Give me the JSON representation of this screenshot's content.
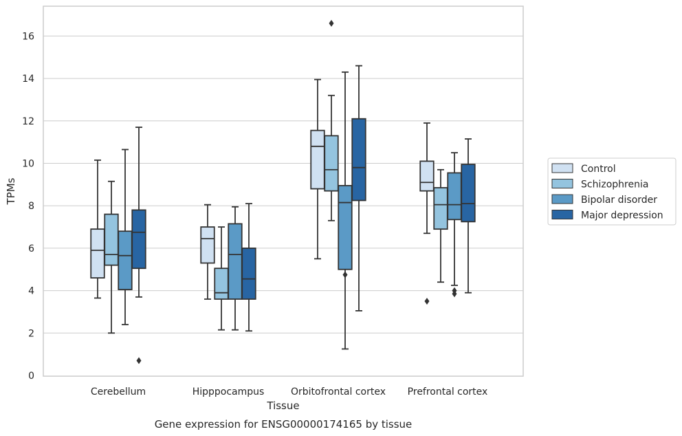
{
  "caption": "Gene expression for ENSG00000174165 by tissue",
  "chart_data": {
    "type": "box",
    "title": "",
    "xlabel": "Tissue",
    "ylabel": "TPMs",
    "ylim": [
      0,
      17.4
    ],
    "yticks": [
      0,
      2,
      4,
      6,
      8,
      10,
      12,
      14,
      16
    ],
    "grid": "horizontal",
    "legend_position": "right",
    "categories": [
      "Cerebellum",
      "Hipppocampus",
      "Orbitofrontal cortex",
      "Prefrontal cortex"
    ],
    "series": [
      {
        "name": "Control",
        "color": "#d0e1f2",
        "boxes": [
          {
            "whisker_low": 3.65,
            "q1": 4.6,
            "median": 5.9,
            "q3": 6.9,
            "whisker_high": 10.15,
            "outliers": []
          },
          {
            "whisker_low": 3.6,
            "q1": 5.3,
            "median": 6.45,
            "q3": 7.0,
            "whisker_high": 8.05,
            "outliers": []
          },
          {
            "whisker_low": 5.5,
            "q1": 8.8,
            "median": 10.8,
            "q3": 11.55,
            "whisker_high": 13.95,
            "outliers": []
          },
          {
            "whisker_low": 6.7,
            "q1": 8.7,
            "median": 9.1,
            "q3": 10.1,
            "whisker_high": 11.9,
            "outliers": [
              3.5
            ]
          }
        ]
      },
      {
        "name": "Schizophrenia",
        "color": "#94c4df",
        "boxes": [
          {
            "whisker_low": 2.0,
            "q1": 5.2,
            "median": 5.7,
            "q3": 7.6,
            "whisker_high": 9.15,
            "outliers": []
          },
          {
            "whisker_low": 2.15,
            "q1": 3.6,
            "median": 3.9,
            "q3": 5.05,
            "whisker_high": 7.0,
            "outliers": []
          },
          {
            "whisker_low": 7.3,
            "q1": 8.7,
            "median": 9.7,
            "q3": 11.3,
            "whisker_high": 13.2,
            "outliers": [
              16.6
            ]
          },
          {
            "whisker_low": 4.4,
            "q1": 6.9,
            "median": 8.05,
            "q3": 8.85,
            "whisker_high": 9.7,
            "outliers": []
          }
        ]
      },
      {
        "name": "Bipolar disorder",
        "color": "#5b9ac6",
        "boxes": [
          {
            "whisker_low": 2.4,
            "q1": 4.05,
            "median": 5.65,
            "q3": 6.8,
            "whisker_high": 10.65,
            "outliers": []
          },
          {
            "whisker_low": 2.15,
            "q1": 3.6,
            "median": 5.7,
            "q3": 7.15,
            "whisker_high": 7.95,
            "outliers": []
          },
          {
            "whisker_low": 1.25,
            "q1": 5.0,
            "median": 8.15,
            "q3": 8.95,
            "whisker_high": 14.3,
            "outliers": [
              4.75
            ]
          },
          {
            "whisker_low": 4.25,
            "q1": 7.35,
            "median": 8.05,
            "q3": 9.55,
            "whisker_high": 10.5,
            "outliers": [
              3.85,
              4.0
            ]
          }
        ]
      },
      {
        "name": "Major depression",
        "color": "#2865a3",
        "boxes": [
          {
            "whisker_low": 3.7,
            "q1": 5.05,
            "median": 6.75,
            "q3": 7.8,
            "whisker_high": 11.7,
            "outliers": [
              0.7
            ]
          },
          {
            "whisker_low": 2.1,
            "q1": 3.6,
            "median": 4.55,
            "q3": 6.0,
            "whisker_high": 8.1,
            "outliers": []
          },
          {
            "whisker_low": 3.05,
            "q1": 8.25,
            "median": 9.8,
            "q3": 12.1,
            "whisker_high": 14.6,
            "outliers": []
          },
          {
            "whisker_low": 3.9,
            "q1": 7.25,
            "median": 8.1,
            "q3": 9.95,
            "whisker_high": 11.15,
            "outliers": []
          }
        ]
      }
    ]
  }
}
